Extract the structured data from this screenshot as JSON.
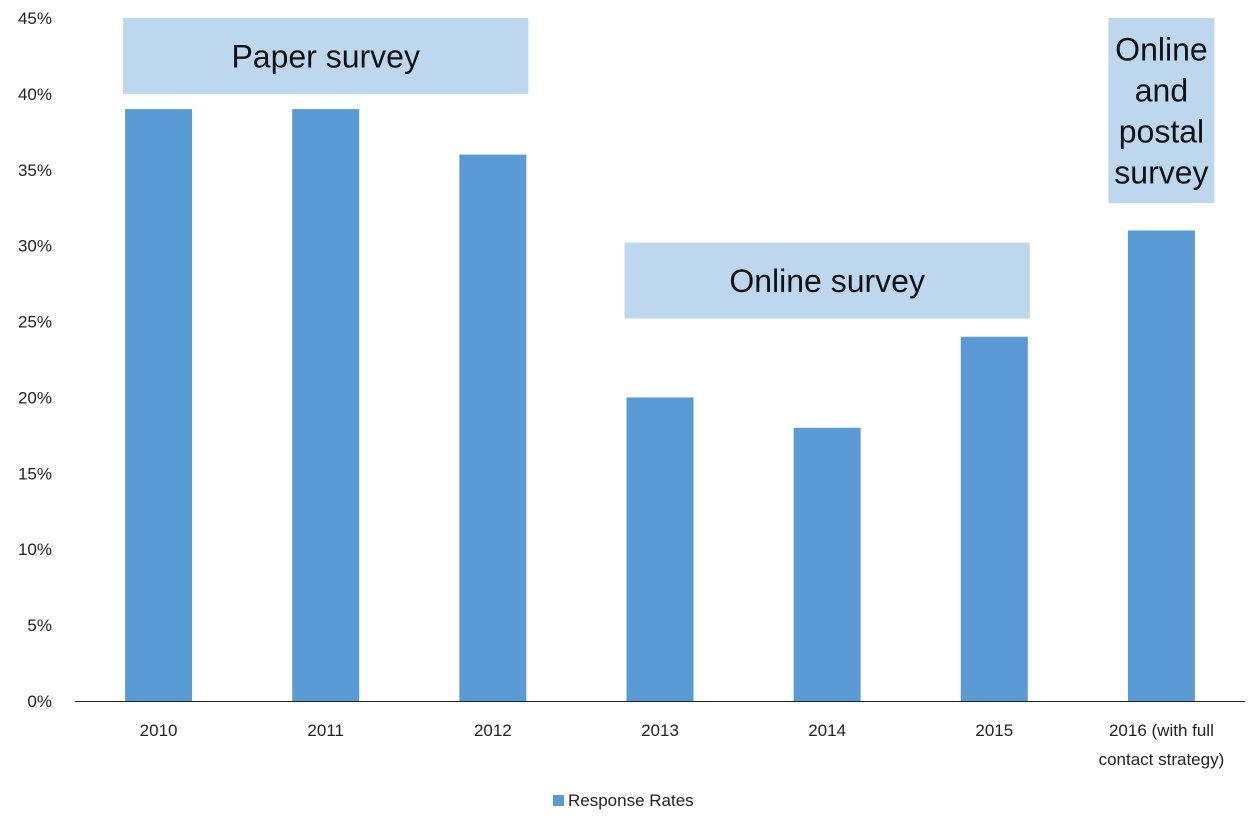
{
  "chart_data": {
    "type": "bar",
    "categories": [
      "2010",
      "2011",
      "2012",
      "2013",
      "2014",
      "2015",
      "2016 (with full contact strategy)"
    ],
    "category_lines": [
      [
        "2010"
      ],
      [
        "2011"
      ],
      [
        "2012"
      ],
      [
        "2013"
      ],
      [
        "2014"
      ],
      [
        "2015"
      ],
      [
        "2016 (with full",
        "contact strategy)"
      ]
    ],
    "series": [
      {
        "name": "Response Rates",
        "values": [
          39,
          39,
          36,
          20,
          18,
          24,
          31
        ],
        "color": "#5b9bd5"
      }
    ],
    "ylim": [
      0,
      45
    ],
    "yticks": [
      0,
      5,
      10,
      15,
      20,
      25,
      30,
      35,
      40,
      45
    ],
    "ytick_labels": [
      "0%",
      "5%",
      "10%",
      "15%",
      "20%",
      "25%",
      "30%",
      "35%",
      "40%",
      "45%"
    ],
    "grid": false,
    "legend_position": "bottom-center",
    "annotations": [
      {
        "lines": [
          "Paper survey"
        ],
        "from_category": 0,
        "to_category": 2,
        "y_low": 40,
        "y_high": 45,
        "color": "#bdd7ee"
      },
      {
        "lines": [
          "Online survey"
        ],
        "from_category": 3,
        "to_category": 5,
        "y_low": 25.2,
        "y_high": 30.2,
        "color": "#bdd7ee"
      },
      {
        "lines": [
          "Online",
          "and",
          "postal",
          "survey"
        ],
        "from_category": 6,
        "to_category": 6,
        "y_low": 32.8,
        "y_high": 45,
        "color": "#bdd7ee"
      }
    ]
  }
}
